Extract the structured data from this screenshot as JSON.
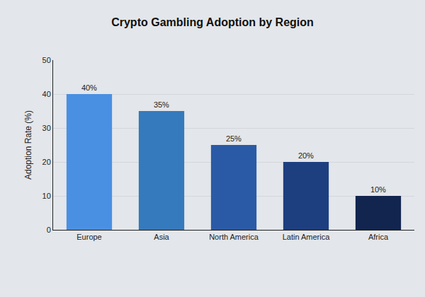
{
  "chart_data": {
    "type": "bar",
    "title": "Crypto Gambling Adoption by Region",
    "y_label": "Adoption Rate (%)",
    "categories": [
      "Europe",
      "Asia",
      "North America",
      "Latin America",
      "Africa"
    ],
    "values": [
      40,
      35,
      25,
      20,
      10
    ],
    "value_labels": [
      "40%",
      "35%",
      "25%",
      "20%",
      "10%"
    ],
    "colors": [
      "#4a90e2",
      "#357abd",
      "#2a5aa6",
      "#1d3f80",
      "#12254f"
    ],
    "ylim": [
      0,
      50
    ],
    "yticks": [
      0,
      10,
      20,
      30,
      40,
      50
    ],
    "grid": true,
    "data_labels": true
  }
}
